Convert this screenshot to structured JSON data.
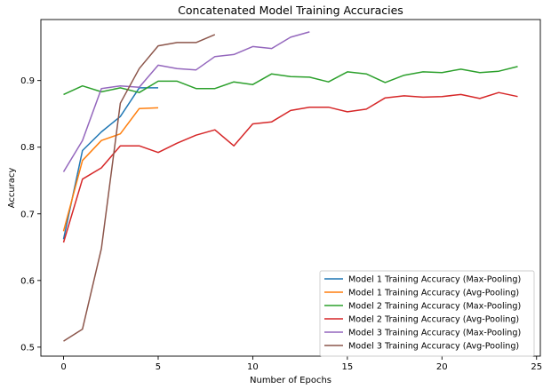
{
  "chart_data": {
    "type": "line",
    "title": "Concatenated Model Training Accuracies",
    "xlabel": "Number of Epochs",
    "ylabel": "Accuracy",
    "xlim": [
      -1.2,
      25.2
    ],
    "ylim": [
      0.4865,
      0.9915
    ],
    "xticks": [
      0,
      5,
      10,
      15,
      20,
      25
    ],
    "yticks": [
      0.5,
      0.6,
      0.7,
      0.8,
      0.9
    ],
    "grid": false,
    "legend_position": "lower-right",
    "series": [
      {
        "name": "Model 1 Training Accuracy (Max-Pooling)",
        "color": "#1f77b4",
        "x": [
          0,
          1,
          2,
          3,
          4,
          5
        ],
        "y": [
          0.662,
          0.795,
          0.823,
          0.846,
          0.889,
          0.889
        ]
      },
      {
        "name": "Model 1 Training Accuracy (Avg-Pooling)",
        "color": "#ff7f0e",
        "x": [
          0,
          1,
          2,
          3,
          4,
          5
        ],
        "y": [
          0.674,
          0.78,
          0.81,
          0.82,
          0.858,
          0.859
        ]
      },
      {
        "name": "Model 2 Training Accuracy (Max-Pooling)",
        "color": "#2ca02c",
        "x": [
          0,
          1,
          2,
          3,
          4,
          5,
          6,
          7,
          8,
          9,
          10,
          11,
          12,
          13,
          14,
          15,
          16,
          17,
          18,
          19,
          20,
          21,
          22,
          23,
          24
        ],
        "y": [
          0.879,
          0.892,
          0.883,
          0.889,
          0.882,
          0.899,
          0.899,
          0.888,
          0.888,
          0.898,
          0.894,
          0.91,
          0.906,
          0.905,
          0.898,
          0.913,
          0.91,
          0.897,
          0.908,
          0.913,
          0.912,
          0.917,
          0.912,
          0.914,
          0.921
        ]
      },
      {
        "name": "Model 2 Training Accuracy (Avg-Pooling)",
        "color": "#d62728",
        "x": [
          0,
          1,
          2,
          3,
          4,
          5,
          6,
          7,
          8,
          9,
          10,
          11,
          12,
          13,
          14,
          15,
          16,
          17,
          18,
          19,
          20,
          21,
          22,
          23,
          24
        ],
        "y": [
          0.657,
          0.752,
          0.769,
          0.802,
          0.802,
          0.792,
          0.806,
          0.818,
          0.826,
          0.802,
          0.835,
          0.838,
          0.855,
          0.86,
          0.86,
          0.853,
          0.857,
          0.874,
          0.877,
          0.875,
          0.876,
          0.879,
          0.873,
          0.882,
          0.876
        ]
      },
      {
        "name": "Model 3 Training Accuracy (Max-Pooling)",
        "color": "#9467bd",
        "x": [
          0,
          1,
          2,
          3,
          4,
          5,
          6,
          7,
          8,
          9,
          10,
          11,
          12,
          13
        ],
        "y": [
          0.763,
          0.81,
          0.888,
          0.892,
          0.89,
          0.923,
          0.918,
          0.916,
          0.936,
          0.939,
          0.951,
          0.948,
          0.965,
          0.973
        ]
      },
      {
        "name": "Model 3 Training Accuracy (Avg-Pooling)",
        "color": "#8c564b",
        "x": [
          0,
          1,
          2,
          3,
          4,
          5,
          6,
          7,
          8
        ],
        "y": [
          0.509,
          0.527,
          0.648,
          0.866,
          0.918,
          0.952,
          0.957,
          0.957,
          0.969
        ]
      }
    ]
  }
}
